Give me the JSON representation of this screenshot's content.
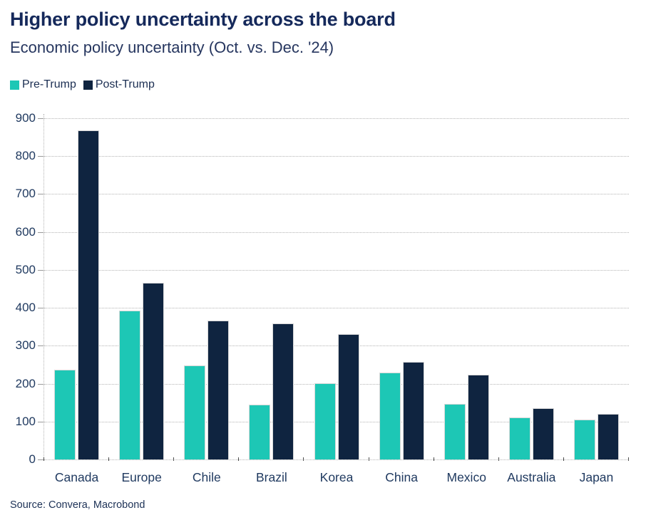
{
  "chart_data": {
    "type": "bar",
    "title": "Higher policy uncertainty across the board",
    "subtitle": "Economic policy uncertainty (Oct. vs. Dec. '24)",
    "categories": [
      "Canada",
      "Europe",
      "Chile",
      "Brazil",
      "Korea",
      "China",
      "Mexico",
      "Australia",
      "Japan"
    ],
    "series": [
      {
        "name": "Pre-Trump",
        "color": "#1dc7b5",
        "values": [
          237,
          393,
          248,
          145,
          201,
          229,
          146,
          111,
          106
        ]
      },
      {
        "name": "Post-Trump",
        "color": "#0f2440",
        "values": [
          868,
          466,
          366,
          359,
          331,
          258,
          224,
          135,
          120
        ]
      }
    ],
    "ylabel": "",
    "xlabel": "",
    "ylim": [
      0,
      900
    ],
    "ytick_interval": 100,
    "grid": "horizontal-dotted",
    "legend_position": "top-left",
    "source": "Source: Convera, Macrobond"
  },
  "colors": {
    "title_text": "#15295b",
    "subtitle_text": "#26365f",
    "axis_text": "#203a60",
    "gridline": "#b4b4b4",
    "bar_outline": "#d8d8d8"
  }
}
